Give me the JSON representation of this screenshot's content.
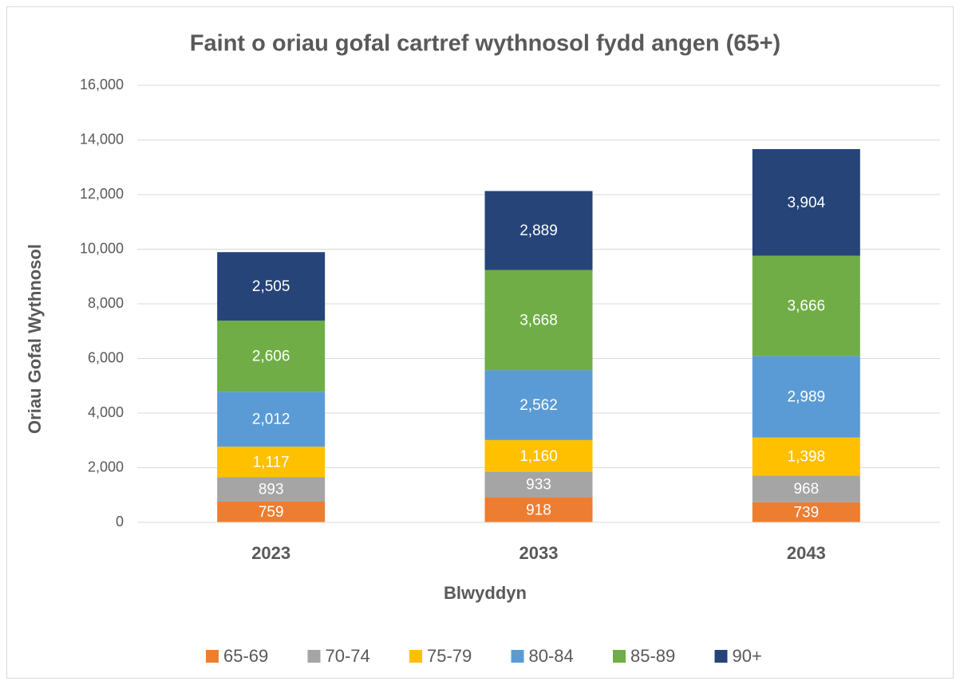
{
  "chart_data": {
    "type": "stacked_bar",
    "title": "Faint o oriau gofal cartref wythnosol fydd angen (65+)",
    "x_label": "Blwyddyn",
    "y_label": "Oriau Gofal Wythnosol",
    "categories": [
      "2023",
      "2033",
      "2043"
    ],
    "series": [
      {
        "name": "65-69",
        "color": "#ed7d31",
        "values": [
          759,
          918,
          739
        ],
        "value_labels": [
          "759",
          "918",
          "739"
        ]
      },
      {
        "name": "70-74",
        "color": "#a5a5a5",
        "values": [
          893,
          933,
          968
        ],
        "value_labels": [
          "893",
          "933",
          "968"
        ]
      },
      {
        "name": "75-79",
        "color": "#ffc000",
        "values": [
          1117,
          1160,
          1398
        ],
        "value_labels": [
          "1,117",
          "1,160",
          "1,398"
        ]
      },
      {
        "name": "80-84",
        "color": "#5b9bd5",
        "values": [
          2012,
          2562,
          2989
        ],
        "value_labels": [
          "2,012",
          "2,562",
          "2,989"
        ]
      },
      {
        "name": "85-89",
        "color": "#70ad47",
        "values": [
          2606,
          3668,
          3666
        ],
        "value_labels": [
          "2,606",
          "3,668",
          "3,666"
        ]
      },
      {
        "name": "90+",
        "color": "#264478",
        "values": [
          2505,
          2889,
          3904
        ],
        "value_labels": [
          "2,505",
          "2,889",
          "3,904"
        ]
      }
    ],
    "ylim": [
      0,
      16000
    ],
    "yticks": [
      0,
      {
        "value": 2000,
        "label": "2,000"
      },
      {
        "value": 4000,
        "label": "4,000"
      },
      {
        "value": 6000,
        "label": "6,000"
      },
      {
        "value": 8000,
        "label": "8,000"
      },
      {
        "value": 10000,
        "label": "10,000"
      },
      {
        "value": 12000,
        "label": "12,000"
      },
      {
        "value": 14000,
        "label": "14,000"
      },
      {
        "value": 16000,
        "label": "16,000"
      }
    ],
    "grid": true,
    "legend": "bottom"
  }
}
